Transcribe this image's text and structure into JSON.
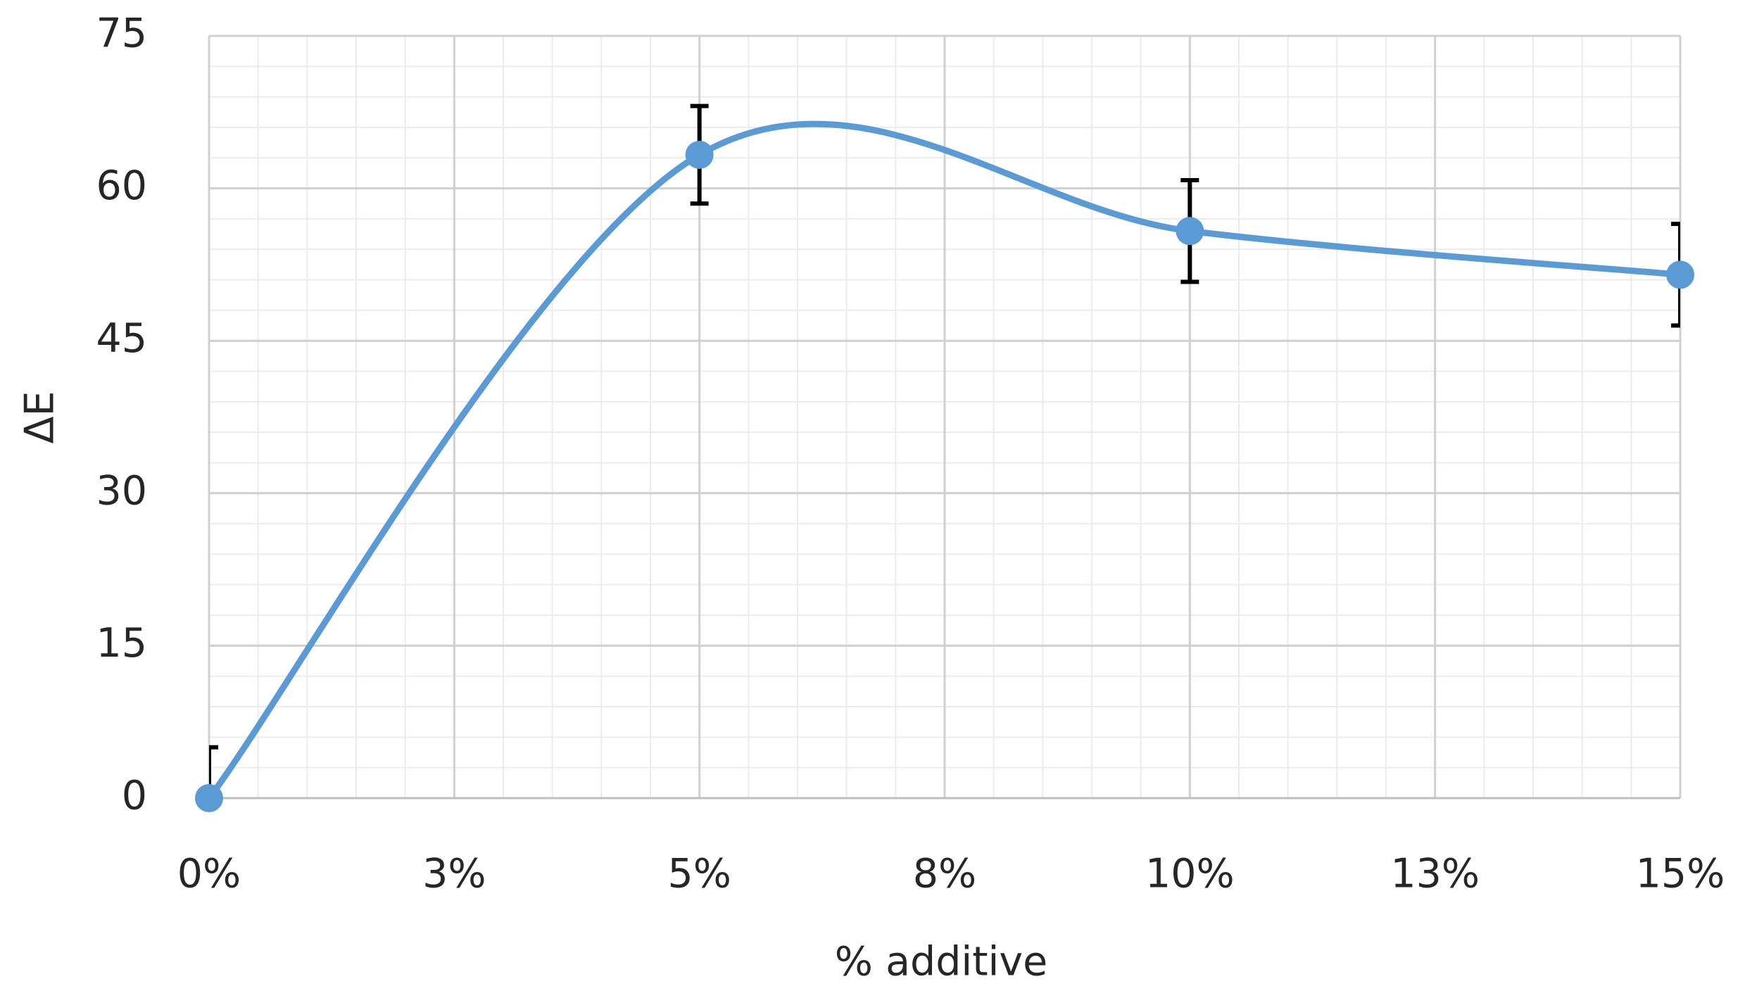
{
  "chart_data": {
    "type": "line",
    "x_label": "% additive",
    "y_label": "ΔE",
    "x": [
      0,
      5,
      10,
      15
    ],
    "series": [
      {
        "color": "#5b9bd5",
        "values": [
          0,
          63.3,
          55.8,
          51.5
        ],
        "errors": [
          5,
          4.8,
          5,
          5
        ]
      }
    ],
    "smooth": true,
    "xlim": [
      0,
      15
    ],
    "xticks": [
      {
        "value": 0,
        "label": "0%"
      },
      {
        "value": 2.5,
        "label": "3%"
      },
      {
        "value": 5,
        "label": "5%"
      },
      {
        "value": 7.5,
        "label": "8%"
      },
      {
        "value": 10,
        "label": "10%"
      },
      {
        "value": 12.5,
        "label": "13%"
      },
      {
        "value": 15,
        "label": "15%"
      }
    ],
    "ylim": [
      0,
      75
    ],
    "yticks": [
      0,
      15,
      30,
      45,
      60,
      75
    ],
    "grid": true,
    "minor_grid": {
      "x": 0.5,
      "y": 3
    }
  }
}
